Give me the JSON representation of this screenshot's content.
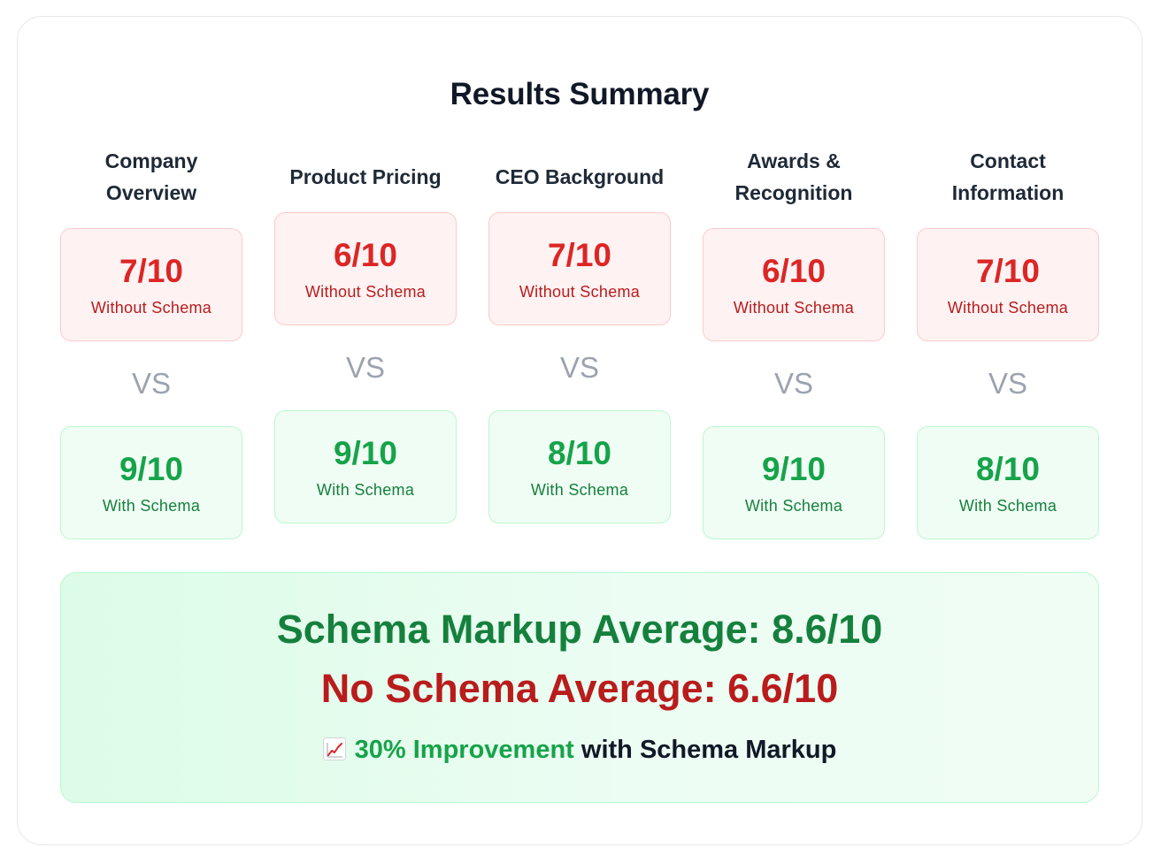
{
  "title": "Results Summary",
  "vs_label": "VS",
  "categories": [
    {
      "title": "Company Overview",
      "without": {
        "score": "7/10",
        "label": "Without Schema"
      },
      "with": {
        "score": "9/10",
        "label": "With Schema"
      }
    },
    {
      "title": "Product Pricing",
      "without": {
        "score": "6/10",
        "label": "Without Schema"
      },
      "with": {
        "score": "9/10",
        "label": "With Schema"
      }
    },
    {
      "title": "CEO Background",
      "without": {
        "score": "7/10",
        "label": "Without Schema"
      },
      "with": {
        "score": "8/10",
        "label": "With Schema"
      }
    },
    {
      "title": "Awards & Recognition",
      "without": {
        "score": "6/10",
        "label": "Without Schema"
      },
      "with": {
        "score": "9/10",
        "label": "With Schema"
      }
    },
    {
      "title": "Contact Information",
      "without": {
        "score": "7/10",
        "label": "Without Schema"
      },
      "with": {
        "score": "8/10",
        "label": "With Schema"
      }
    }
  ],
  "summary": {
    "schema_average": "Schema Markup Average: 8.6/10",
    "no_schema_average": "No Schema Average: 6.6/10",
    "improvement_icon": "chart-increasing-icon",
    "improvement_highlight": "30% Improvement",
    "improvement_rest": " with Schema Markup"
  },
  "colors": {
    "without_text": "#dc2626",
    "with_text": "#16a34a",
    "vs_text": "#9ca3af"
  }
}
